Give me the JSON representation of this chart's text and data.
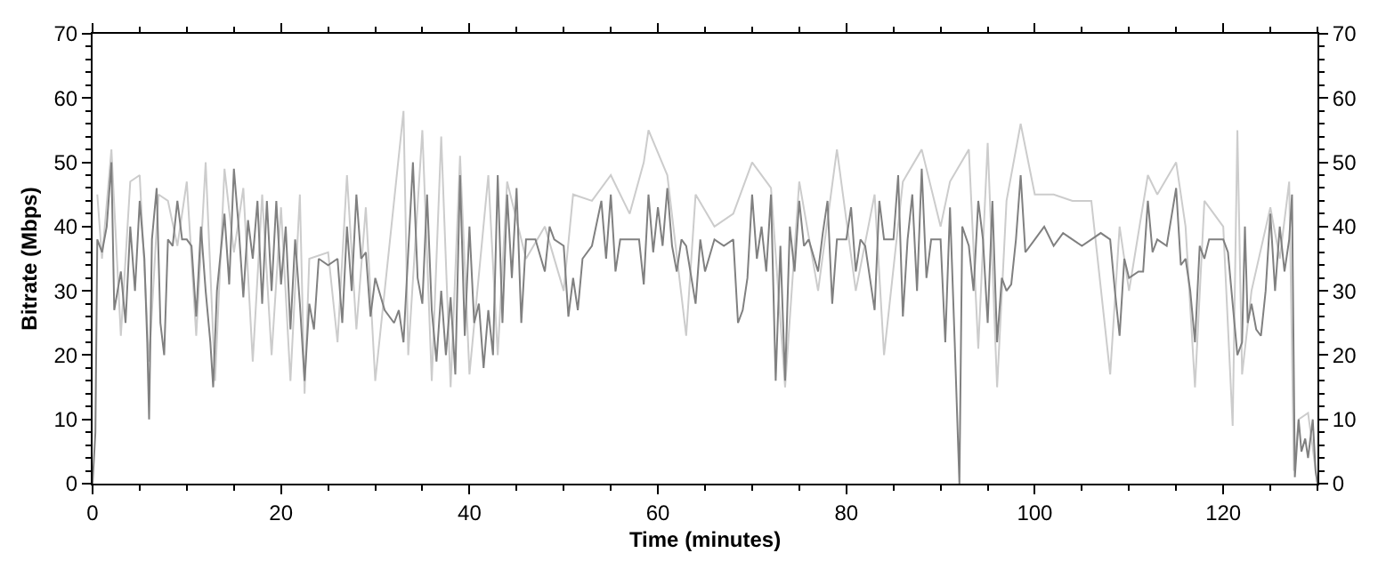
{
  "chart_data": {
    "type": "line",
    "xlabel": "Time (minutes)",
    "ylabel": "Bitrate (Mbps)",
    "xlim": [
      0,
      130
    ],
    "xticks": [
      0,
      20,
      40,
      60,
      80,
      100,
      120
    ],
    "ylim": [
      0,
      70
    ],
    "yticks": [
      0,
      10,
      20,
      30,
      40,
      50,
      60,
      70
    ],
    "y2lim": [
      0,
      70
    ],
    "y2ticks": [
      0,
      10,
      20,
      30,
      40,
      50,
      60,
      70
    ],
    "marker": "none",
    "line_style": "solid",
    "series": [
      {
        "color": "#cccccc",
        "x": [
          0.5,
          1,
          2,
          3,
          4,
          5,
          6,
          7,
          8,
          9,
          10,
          11,
          12,
          13,
          14,
          15,
          16,
          17,
          18,
          19,
          20,
          21,
          22,
          22.5,
          23,
          25,
          26,
          27,
          28,
          29,
          30,
          31,
          33,
          33.5,
          35,
          36,
          37,
          38,
          39,
          40,
          42,
          43,
          44,
          46,
          48,
          50,
          51,
          53,
          55,
          57,
          58.5,
          59,
          61,
          63,
          64,
          66,
          68,
          70,
          72,
          73.5,
          75,
          77,
          79,
          81,
          83,
          84,
          86,
          88,
          90,
          91,
          93,
          94,
          95,
          96,
          97,
          98.5,
          100,
          102,
          104,
          106,
          108,
          109,
          110,
          112,
          113,
          115,
          116,
          117,
          118,
          120,
          121,
          121.5,
          122,
          123,
          125,
          126,
          127,
          127.5,
          128,
          129,
          130
        ],
        "values": [
          45,
          35,
          52,
          23,
          47,
          48,
          19,
          45,
          44,
          37,
          47,
          23,
          50,
          16,
          49,
          36,
          46,
          19,
          45,
          20,
          43,
          16,
          45,
          14,
          35,
          36,
          22,
          48,
          24,
          43,
          16,
          30,
          58,
          20,
          55,
          16,
          54,
          15,
          51,
          17,
          48,
          20,
          47,
          35,
          40,
          30,
          45,
          44,
          48,
          42,
          50,
          55,
          48,
          23,
          45,
          40,
          42,
          50,
          46,
          15,
          47,
          30,
          52,
          30,
          45,
          20,
          47,
          52,
          40,
          47,
          52,
          21,
          53,
          15,
          44,
          56,
          45,
          45,
          44,
          44,
          17,
          40,
          30,
          48,
          45,
          50,
          40,
          15,
          44,
          40,
          9,
          55,
          17,
          30,
          43,
          35,
          47,
          2,
          10,
          11,
          0
        ]
      },
      {
        "color": "#808080",
        "x": [
          0,
          0.3,
          0.5,
          1,
          1.5,
          2,
          2.3,
          3,
          3.5,
          4,
          4.5,
          5,
          5.5,
          5.8,
          6,
          6.3,
          6.8,
          7.2,
          7.6,
          8,
          8.5,
          9,
          9.5,
          10,
          10.5,
          11,
          11.5,
          12,
          12.5,
          12.8,
          13.2,
          14,
          14.5,
          15,
          15.5,
          16,
          16.5,
          17,
          17.5,
          18,
          18.5,
          19,
          19.5,
          20,
          20.5,
          21,
          21.5,
          22,
          22.5,
          23,
          23.5,
          24,
          25,
          26,
          26.5,
          27,
          27.5,
          28,
          28.5,
          29,
          29.5,
          30,
          31,
          32,
          32.5,
          33,
          34,
          34.5,
          35,
          35.5,
          36,
          36.5,
          37,
          37.5,
          38,
          38.5,
          39,
          39.5,
          40,
          40.5,
          41,
          41.5,
          42,
          42.5,
          43,
          43.5,
          44,
          44.5,
          45,
          45.5,
          46,
          47,
          48,
          48.5,
          49,
          50,
          50.5,
          51,
          51.5,
          52,
          53,
          54,
          54.5,
          55,
          55.5,
          56,
          57,
          58,
          58.5,
          59,
          59.5,
          60,
          60.5,
          61,
          61.5,
          62,
          62.5,
          63,
          64,
          64.5,
          65,
          66,
          67,
          68,
          68.5,
          69,
          69.5,
          70,
          70.5,
          71,
          71.5,
          72,
          72.5,
          73,
          73.5,
          74,
          74.5,
          75,
          75.5,
          76,
          77,
          77.5,
          78,
          78.5,
          79,
          80,
          80.5,
          81,
          81.5,
          82,
          83,
          83.5,
          84,
          85,
          85.5,
          86,
          86.5,
          87,
          87.5,
          88,
          88.5,
          89,
          90,
          90.5,
          91,
          91.5,
          92,
          92.3,
          93,
          93.5,
          94,
          94.5,
          95,
          95.5,
          96,
          96.5,
          97,
          97.5,
          98,
          98.5,
          99,
          100,
          101,
          102,
          103,
          104,
          105,
          106,
          107,
          108,
          108.5,
          109,
          109.5,
          110,
          111,
          111.5,
          112,
          112.5,
          113,
          114,
          115,
          115.5,
          116,
          116.5,
          117,
          117.5,
          118,
          118.5,
          119,
          120,
          120.5,
          121,
          121.5,
          122,
          122.3,
          122.6,
          123,
          123.5,
          124,
          124.5,
          125,
          125.5,
          126,
          126.5,
          127,
          127.3,
          127.6,
          128,
          128.3,
          128.7,
          129,
          129.5,
          129.8,
          130
        ],
        "values": [
          0,
          8,
          38,
          36,
          40,
          50,
          27,
          33,
          25,
          40,
          30,
          44,
          35,
          22,
          10,
          38,
          46,
          25,
          20,
          38,
          37,
          44,
          38,
          38,
          37,
          26,
          40,
          30,
          22,
          15,
          30,
          42,
          31,
          49,
          40,
          29,
          41,
          35,
          44,
          28,
          44,
          30,
          44,
          31,
          40,
          24,
          38,
          28,
          16,
          28,
          24,
          35,
          34,
          35,
          25,
          40,
          30,
          45,
          35,
          36,
          26,
          32,
          27,
          25,
          27,
          22,
          50,
          32,
          28,
          45,
          27,
          19,
          30,
          20,
          29,
          17,
          48,
          23,
          40,
          25,
          28,
          18,
          27,
          20,
          48,
          25,
          45,
          32,
          46,
          25,
          38,
          38,
          33,
          40,
          38,
          37,
          26,
          32,
          27,
          35,
          37,
          44,
          35,
          45,
          33,
          38,
          38,
          38,
          31,
          45,
          36,
          43,
          37,
          46,
          37,
          33,
          38,
          37,
          28,
          38,
          33,
          38,
          37,
          38,
          25,
          27,
          32,
          45,
          35,
          40,
          33,
          45,
          16,
          37,
          16,
          40,
          33,
          44,
          37,
          38,
          33,
          39,
          44,
          28,
          38,
          38,
          43,
          33,
          38,
          37,
          27,
          44,
          38,
          38,
          48,
          26,
          38,
          45,
          30,
          49,
          32,
          38,
          38,
          22,
          43,
          22,
          0,
          40,
          37,
          30,
          44,
          38,
          25,
          44,
          22,
          32,
          30,
          31,
          38,
          48,
          36,
          38,
          40,
          37,
          39,
          38,
          37,
          38,
          39,
          38,
          30,
          23,
          35,
          32,
          33,
          33,
          44,
          36,
          38,
          37,
          46,
          34,
          35,
          30,
          22,
          37,
          35,
          38,
          38,
          38,
          36,
          28,
          20,
          22,
          40,
          25,
          28,
          24,
          23,
          30,
          42,
          30,
          40,
          33,
          38,
          45,
          1,
          10,
          5,
          7,
          4,
          10,
          2,
          0
        ]
      }
    ]
  }
}
